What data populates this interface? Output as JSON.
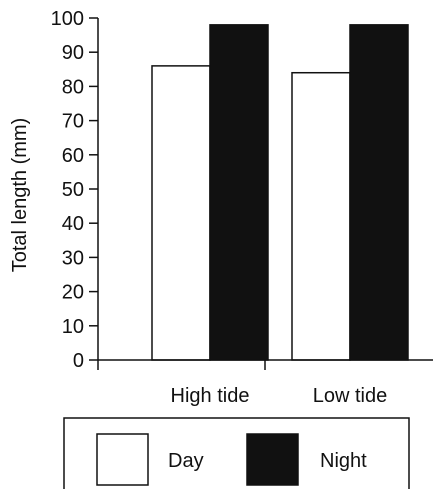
{
  "chart_data": {
    "type": "bar",
    "categories": [
      "High tide",
      "Low tide"
    ],
    "series": [
      {
        "name": "Day",
        "values": [
          86,
          84
        ],
        "color": "#ffffff"
      },
      {
        "name": "Night",
        "values": [
          98,
          98
        ],
        "color": "#111111"
      }
    ],
    "title": "",
    "xlabel": "",
    "ylabel": "Total length (mm)",
    "ylim": [
      0,
      100
    ],
    "yticks": [
      0,
      10,
      20,
      30,
      40,
      50,
      60,
      70,
      80,
      90,
      100
    ],
    "grid": false,
    "legend": {
      "position": "bottom",
      "boxed": true
    }
  }
}
